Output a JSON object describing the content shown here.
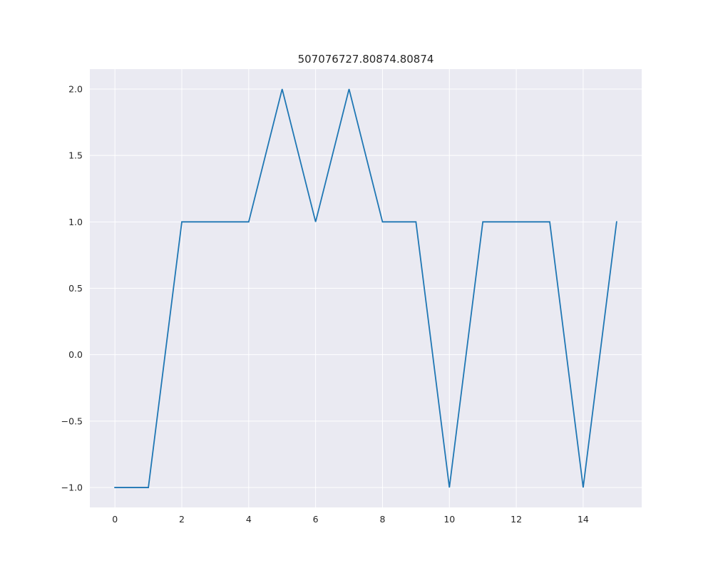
{
  "chart_data": {
    "type": "line",
    "title": "507076727.80874.80874",
    "xlabel": "",
    "ylabel": "",
    "xlim": [
      -0.75,
      15.75
    ],
    "ylim": [
      -1.15,
      2.15
    ],
    "xticks": [
      0,
      2,
      4,
      6,
      8,
      10,
      12,
      14
    ],
    "xtick_labels": [
      "0",
      "2",
      "4",
      "6",
      "8",
      "10",
      "12",
      "14"
    ],
    "yticks": [
      -1.0,
      -0.5,
      0.0,
      0.5,
      1.0,
      1.5,
      2.0
    ],
    "ytick_labels": [
      "−1.0",
      "−0.5",
      "0.0",
      "0.5",
      "1.0",
      "1.5",
      "2.0"
    ],
    "grid": true,
    "series": [
      {
        "color": "#1f77b4",
        "x": [
          0,
          1,
          2,
          3,
          4,
          5,
          6,
          7,
          8,
          9,
          10,
          11,
          12,
          13,
          14,
          15
        ],
        "y": [
          -1,
          -1,
          1,
          1,
          1,
          2,
          1,
          2,
          1,
          1,
          -1,
          1,
          1,
          1,
          -1,
          1
        ]
      }
    ]
  }
}
